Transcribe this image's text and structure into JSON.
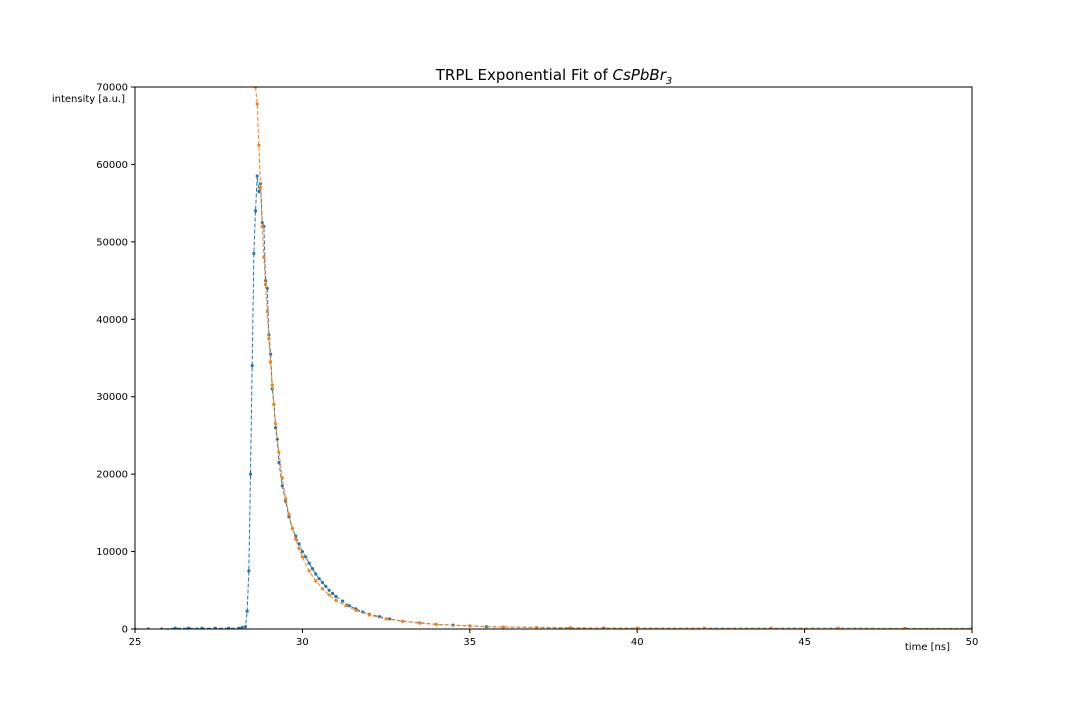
{
  "chart_data": {
    "type": "line",
    "title": "TRPL Exponential Fit of ",
    "title_math": {
      "base": "CsPbBr",
      "subscript": "3"
    },
    "xlabel": "time [ns]",
    "ylabel": "intensity [a.u.]",
    "xlim": [
      25,
      50
    ],
    "ylim": [
      0,
      70000
    ],
    "xticks": [
      25,
      30,
      35,
      40,
      45,
      50
    ],
    "yticks": [
      0,
      10000,
      20000,
      30000,
      40000,
      50000,
      60000,
      70000
    ],
    "xtick_labels": [
      "25",
      "30",
      "35",
      "40",
      "45",
      "50"
    ],
    "ytick_labels": [
      "0",
      "10000",
      "20000",
      "30000",
      "40000",
      "50000",
      "60000",
      "70000"
    ],
    "grid": false,
    "series": [
      {
        "color": "#1f77b4",
        "style": "dashed-with-dots",
        "x": [
          25.0,
          25.4,
          25.8,
          26.2,
          26.6,
          27.0,
          27.4,
          27.8,
          28.1,
          28.2,
          28.3,
          28.35,
          28.4,
          28.45,
          28.5,
          28.55,
          28.6,
          28.65,
          28.7,
          28.75,
          28.8,
          28.85,
          28.9,
          28.95,
          29.0,
          29.05,
          29.1,
          29.15,
          29.2,
          29.25,
          29.3,
          29.4,
          29.5,
          29.6,
          29.7,
          29.8,
          29.9,
          30.0,
          30.1,
          30.2,
          30.3,
          30.4,
          30.5,
          30.6,
          30.7,
          30.8,
          30.9,
          31.0,
          31.2,
          31.4,
          31.6,
          31.8,
          32.0,
          32.3,
          32.6,
          33.0,
          33.5,
          34.0,
          34.5,
          35.0,
          35.5,
          36.0,
          37.0,
          38.0,
          39.0,
          40.0,
          42.0,
          44.0,
          46.0,
          48.0,
          50.0
        ],
        "y": [
          0,
          0,
          0,
          100,
          100,
          100,
          100,
          100,
          100,
          200,
          300,
          2300,
          7500,
          20000,
          34000,
          48500,
          54000,
          58500,
          56500,
          57500,
          52500,
          52000,
          45000,
          44000,
          38000,
          35500,
          31000,
          29000,
          26000,
          24500,
          21500,
          18500,
          16500,
          14500,
          13000,
          12000,
          11000,
          10000,
          9300,
          8500,
          7800,
          7100,
          6500,
          6000,
          5500,
          5000,
          4600,
          4200,
          3600,
          3000,
          2600,
          2200,
          1900,
          1600,
          1300,
          1000,
          800,
          600,
          500,
          400,
          300,
          250,
          200,
          150,
          120,
          100,
          100,
          100,
          100,
          80,
          80
        ]
      },
      {
        "color": "#ff7f0e",
        "style": "dashed-with-dots",
        "x": [
          28.6,
          28.65,
          28.7,
          28.75,
          28.8,
          28.85,
          28.9,
          28.95,
          29.0,
          29.05,
          29.1,
          29.15,
          29.2,
          29.3,
          29.4,
          29.5,
          29.6,
          29.7,
          29.8,
          29.9,
          30.0,
          30.2,
          30.4,
          30.6,
          30.8,
          31.0,
          31.3,
          31.6,
          32.0,
          32.5,
          33.0,
          33.5,
          34.0,
          35.0,
          36.0,
          37.0,
          38.0,
          40.0,
          42.0,
          44.0,
          46.0,
          48.0,
          50.0
        ],
        "y": [
          70000,
          67800,
          62500,
          57000,
          52000,
          48000,
          44500,
          41000,
          37500,
          34500,
          31500,
          29000,
          26500,
          22800,
          19500,
          16800,
          14800,
          13000,
          11600,
          10400,
          9300,
          7500,
          6200,
          5200,
          4400,
          3700,
          3000,
          2400,
          1800,
          1300,
          1000,
          750,
          580,
          380,
          260,
          190,
          150,
          110,
          90,
          80,
          70,
          60,
          60
        ]
      }
    ]
  }
}
